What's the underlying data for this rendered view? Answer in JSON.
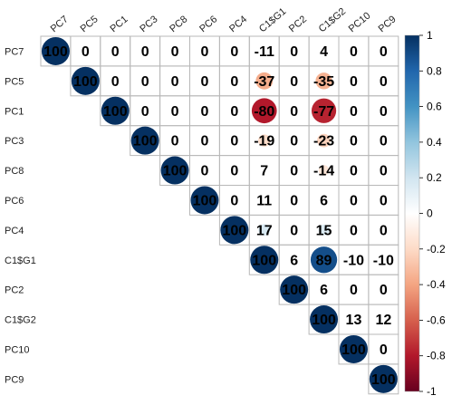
{
  "chart_data": {
    "type": "heatmap",
    "title": "",
    "variables": [
      "PC7",
      "PC5",
      "PC1",
      "PC3",
      "PC8",
      "PC6",
      "PC4",
      "C1$G1",
      "PC2",
      "C1$G2",
      "PC10",
      "PC9"
    ],
    "matrix": [
      [
        100,
        0,
        0,
        0,
        0,
        0,
        0,
        -11,
        0,
        4,
        0,
        0
      ],
      [
        null,
        100,
        0,
        0,
        0,
        0,
        0,
        -37,
        0,
        -35,
        0,
        0
      ],
      [
        null,
        null,
        100,
        0,
        0,
        0,
        0,
        -80,
        0,
        -77,
        0,
        0
      ],
      [
        null,
        null,
        null,
        100,
        0,
        0,
        0,
        -19,
        0,
        -23,
        0,
        0
      ],
      [
        null,
        null,
        null,
        null,
        100,
        0,
        0,
        7,
        0,
        -14,
        0,
        0
      ],
      [
        null,
        null,
        null,
        null,
        null,
        100,
        0,
        11,
        0,
        6,
        0,
        0
      ],
      [
        null,
        null,
        null,
        null,
        null,
        null,
        100,
        17,
        0,
        15,
        0,
        0
      ],
      [
        null,
        null,
        null,
        null,
        null,
        null,
        null,
        100,
        6,
        89,
        -10,
        -10
      ],
      [
        null,
        null,
        null,
        null,
        null,
        null,
        null,
        null,
        100,
        6,
        0,
        0
      ],
      [
        null,
        null,
        null,
        null,
        null,
        null,
        null,
        null,
        null,
        100,
        13,
        12
      ],
      [
        null,
        null,
        null,
        null,
        null,
        null,
        null,
        null,
        null,
        null,
        100,
        0
      ],
      [
        null,
        null,
        null,
        null,
        null,
        null,
        null,
        null,
        null,
        null,
        null,
        100
      ]
    ],
    "colorbar": {
      "ticks": [
        "1",
        "0.8",
        "0.6",
        "0.4",
        "0.2",
        "0",
        "-0.2",
        "-0.4",
        "-0.6",
        "-0.8",
        "-1"
      ],
      "range": [
        -1,
        1
      ],
      "colors": [
        "#67001F",
        "#B2182B",
        "#D6604D",
        "#F4A582",
        "#FDDBC7",
        "#FFFFFF",
        "#D1E5F0",
        "#92C5DE",
        "#4393C3",
        "#2166AC",
        "#053061"
      ]
    },
    "triangle": "upper",
    "circle_threshold": 13
  }
}
